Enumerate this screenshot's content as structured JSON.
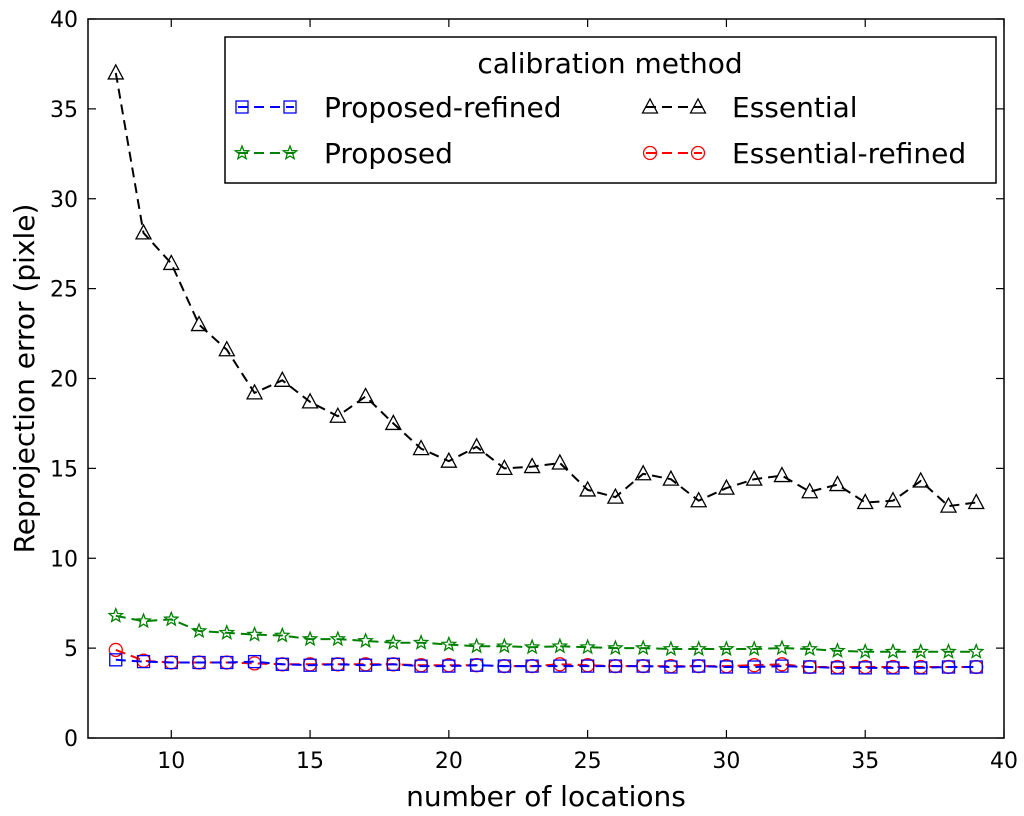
{
  "chart_data": {
    "type": "line",
    "xlabel": "number of locations",
    "ylabel": "Reprojection error (pixle)",
    "xlim": [
      7,
      40
    ],
    "ylim": [
      0,
      40
    ],
    "xticks": [
      10,
      15,
      20,
      25,
      30,
      35,
      40
    ],
    "yticks": [
      0,
      5,
      10,
      15,
      20,
      25,
      30,
      35,
      40
    ],
    "grid": false,
    "legend": {
      "title": "calibration method",
      "placement": "top-right",
      "columns": 2
    },
    "x": [
      8,
      9,
      10,
      11,
      12,
      13,
      14,
      15,
      16,
      17,
      18,
      19,
      20,
      21,
      22,
      23,
      24,
      25,
      26,
      27,
      28,
      29,
      30,
      31,
      32,
      33,
      34,
      35,
      36,
      37,
      38,
      39
    ],
    "series": [
      {
        "name": "Proposed-refined",
        "color": "#0000ff",
        "marker": "square",
        "values": [
          4.35,
          4.25,
          4.2,
          4.2,
          4.2,
          4.25,
          4.1,
          4.05,
          4.1,
          4.05,
          4.1,
          4.0,
          4.0,
          4.05,
          4.0,
          4.0,
          4.0,
          4.0,
          4.0,
          4.0,
          3.95,
          4.0,
          3.95,
          3.95,
          4.0,
          3.95,
          3.9,
          3.9,
          3.9,
          3.9,
          3.95,
          3.95
        ]
      },
      {
        "name": "Proposed",
        "color": "#008000",
        "marker": "star",
        "values": [
          6.8,
          6.5,
          6.6,
          5.95,
          5.85,
          5.75,
          5.7,
          5.5,
          5.5,
          5.4,
          5.3,
          5.3,
          5.2,
          5.1,
          5.1,
          5.05,
          5.1,
          5.05,
          5.0,
          5.0,
          4.95,
          4.95,
          4.95,
          4.95,
          5.0,
          4.95,
          4.85,
          4.8,
          4.8,
          4.8,
          4.8,
          4.8
        ]
      },
      {
        "name": "Essential",
        "color": "#000000",
        "marker": "triangle",
        "values": [
          37.0,
          28.1,
          26.4,
          23.0,
          21.6,
          19.2,
          19.9,
          18.7,
          17.9,
          19.0,
          17.5,
          16.1,
          15.4,
          16.2,
          15.0,
          15.1,
          15.3,
          13.8,
          13.4,
          14.7,
          14.4,
          13.2,
          13.9,
          14.4,
          14.6,
          13.7,
          14.1,
          13.1,
          13.2,
          14.3,
          12.9,
          13.1
        ]
      },
      {
        "name": "Essential-refined",
        "color": "#ff0000",
        "marker": "circle",
        "values": [
          4.9,
          4.3,
          4.2,
          4.2,
          4.2,
          4.15,
          4.1,
          4.1,
          4.1,
          4.1,
          4.1,
          4.05,
          4.05,
          4.05,
          4.0,
          4.0,
          4.1,
          4.05,
          4.0,
          4.0,
          4.0,
          4.0,
          4.0,
          4.05,
          4.1,
          3.95,
          3.95,
          3.95,
          3.95,
          3.95,
          3.95,
          3.95
        ]
      }
    ]
  }
}
